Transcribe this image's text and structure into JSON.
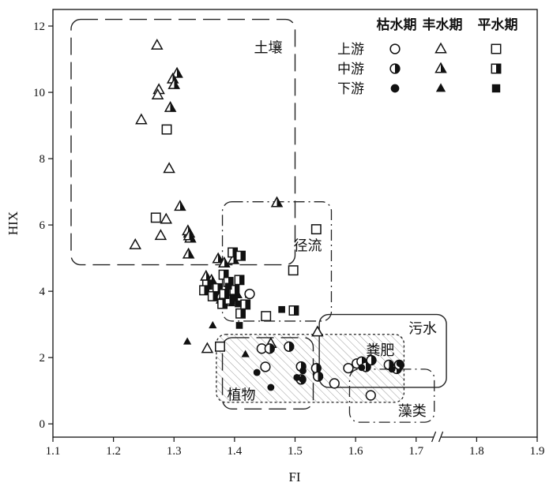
{
  "chart_data": {
    "type": "scatter",
    "title": "",
    "xlabel": "FI",
    "ylabel": "HIX",
    "xlim": [
      1.1,
      1.9
    ],
    "ylim": [
      -0.4,
      12.5
    ],
    "xticks": [
      1.1,
      1.2,
      1.3,
      1.4,
      1.5,
      1.6,
      1.7,
      1.8,
      1.9
    ],
    "xtick_labels": [
      "1.1",
      "1.2",
      "1.3",
      "1.4",
      "1.5",
      "1.6",
      "1.7",
      "1.8",
      "1.9"
    ],
    "yticks": [
      0,
      2,
      4,
      6,
      8,
      10,
      12
    ],
    "ytick_labels": [
      "0",
      "2",
      "4",
      "6",
      "8",
      "10",
      "12"
    ],
    "axis_break": "x-axis between 1.7 and 1.9",
    "grid": false,
    "legend": {
      "placement": "top-right",
      "columns": [
        "枯水期",
        "丰水期",
        "平水期"
      ],
      "rows": [
        "上游",
        "中游",
        "下游"
      ],
      "column_markers": [
        "circle",
        "triangle",
        "square"
      ],
      "row_fills": [
        "open",
        "half",
        "filled"
      ]
    },
    "regions": [
      {
        "label": "土壤",
        "style": "long-dash",
        "x": [
          1.13,
          1.5
        ],
        "y": [
          4.8,
          12.2
        ]
      },
      {
        "label": "径流",
        "style": "dash-dot",
        "x": [
          1.38,
          1.56
        ],
        "y": [
          3.1,
          6.7
        ]
      },
      {
        "label": "污水",
        "style": "solid",
        "x": [
          1.54,
          1.75
        ],
        "y": [
          1.1,
          3.3
        ]
      },
      {
        "label": "粪肥",
        "style": "dotted-hatched",
        "x": [
          1.37,
          1.68
        ],
        "y": [
          0.65,
          2.7
        ]
      },
      {
        "label": "植物",
        "style": "long-dash",
        "x": [
          1.38,
          1.53
        ],
        "y": [
          0.45,
          2.6
        ]
      },
      {
        "label": "藻类",
        "style": "dash-dot",
        "x": [
          1.59,
          1.73
        ],
        "y": [
          0.05,
          1.65
        ]
      }
    ],
    "series": [
      {
        "season": "丰水期",
        "reach": "上游",
        "marker": "triangle",
        "fill": "open",
        "x": [
          1.272,
          1.275,
          1.273,
          1.246,
          1.292,
          1.236,
          1.278,
          1.287,
          1.325,
          1.355,
          1.46,
          1.537
        ],
        "y": [
          11.42,
          10.08,
          9.92,
          9.17,
          7.7,
          5.4,
          5.68,
          6.17,
          5.75,
          2.27,
          2.42,
          2.77
        ]
      },
      {
        "season": "丰水期",
        "reach": "中游",
        "marker": "triangle",
        "fill": "half",
        "x": [
          1.305,
          1.298,
          1.3,
          1.294,
          1.31,
          1.323,
          1.327,
          1.325,
          1.324,
          1.47,
          1.373,
          1.383,
          1.398,
          1.353,
          1.362,
          1.377,
          1.379,
          1.391,
          1.403
        ],
        "y": [
          10.57,
          10.4,
          10.23,
          9.54,
          6.56,
          5.82,
          5.6,
          5.67,
          5.12,
          6.67,
          4.98,
          4.85,
          4.95,
          4.45,
          4.33,
          3.88,
          3.76,
          3.68,
          3.92
        ]
      },
      {
        "season": "丰水期",
        "reach": "下游",
        "marker": "triangle",
        "fill": "filled",
        "x": [
          1.322,
          1.364,
          1.418
        ],
        "y": [
          2.48,
          2.97,
          2.1
        ]
      },
      {
        "season": "平水期",
        "reach": "上游",
        "marker": "square",
        "fill": "open",
        "x": [
          1.288,
          1.27,
          1.535,
          1.497,
          1.452,
          1.376
        ],
        "y": [
          8.88,
          6.22,
          5.87,
          4.63,
          3.25,
          2.33
        ]
      },
      {
        "season": "平水期",
        "reach": "中游",
        "marker": "square",
        "fill": "half",
        "x": [
          1.397,
          1.41,
          1.382,
          1.39,
          1.372,
          1.355,
          1.35,
          1.4,
          1.408,
          1.364,
          1.38,
          1.392,
          1.418,
          1.41,
          1.383,
          1.498
        ],
        "y": [
          5.17,
          5.07,
          4.5,
          4.28,
          4.09,
          4.2,
          4.03,
          4.04,
          4.34,
          3.85,
          3.62,
          3.75,
          3.6,
          3.33,
          3.92,
          3.42
        ]
      },
      {
        "season": "平水期",
        "reach": "下游",
        "marker": "square",
        "fill": "filled",
        "x": [
          1.406,
          1.39,
          1.423,
          1.478,
          1.408,
          1.4
        ],
        "y": [
          3.62,
          4.15,
          3.9,
          3.45,
          2.97,
          3.8
        ]
      },
      {
        "season": "枯水期",
        "reach": "上游",
        "marker": "circle",
        "fill": "open",
        "x": [
          1.425,
          1.445,
          1.451,
          1.565,
          1.625,
          1.602,
          1.588
        ],
        "y": [
          3.92,
          2.27,
          1.72,
          1.22,
          0.86,
          1.82,
          1.68
        ]
      },
      {
        "season": "枯水期",
        "reach": "中游",
        "marker": "circle",
        "fill": "half",
        "x": [
          1.458,
          1.49,
          1.51,
          1.51,
          1.535,
          1.538,
          1.61,
          1.617,
          1.626,
          1.655,
          1.668,
          1.672
        ],
        "y": [
          2.27,
          2.33,
          1.73,
          1.34,
          1.68,
          1.43,
          1.88,
          1.72,
          1.92,
          1.78,
          1.66,
          1.78
        ]
      },
      {
        "season": "枯水期",
        "reach": "下游",
        "marker": "circle",
        "fill": "filled",
        "x": [
          1.437,
          1.46,
          1.503,
          1.512,
          1.513,
          1.61,
          1.66,
          1.673
        ],
        "y": [
          1.55,
          1.1,
          1.4,
          1.35,
          1.6,
          1.7,
          1.65,
          1.82
        ]
      }
    ]
  }
}
